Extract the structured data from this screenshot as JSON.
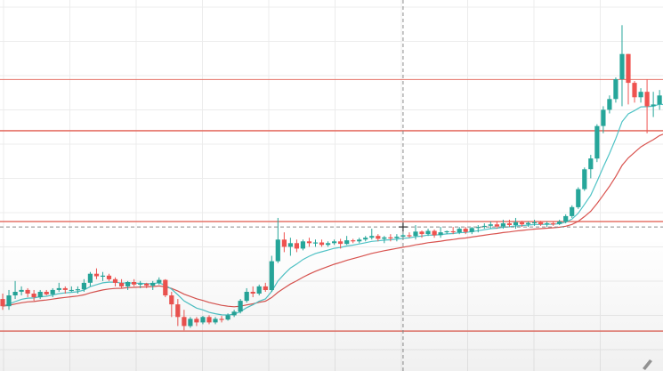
{
  "chart_data": {
    "type": "candlestick",
    "title": "",
    "xlabel": "",
    "ylabel": "",
    "ylim": [
      0,
      100
    ],
    "grid": true,
    "colors": {
      "up": "#26a69a",
      "down": "#ef5350",
      "fast_ma": "#4fc3c6",
      "slow_ma": "#d9534f",
      "horizontal_levels": "#e57368",
      "grid": "#ececec",
      "crosshair": "#8a8a8a"
    },
    "horizontal_levels": [
      79.4,
      65.2,
      40.0,
      9.6
    ],
    "crosshair": {
      "x_index": 64,
      "y_value": 38.5
    },
    "candles": [
      {
        "o": 18.5,
        "h": 20.0,
        "l": 15.5,
        "c": 16.5
      },
      {
        "o": 16.5,
        "h": 21.0,
        "l": 15.5,
        "c": 19.5
      },
      {
        "o": 19.5,
        "h": 23.5,
        "l": 18.5,
        "c": 20.5
      },
      {
        "o": 20.5,
        "h": 22.0,
        "l": 19.5,
        "c": 21.0
      },
      {
        "o": 21.0,
        "h": 21.5,
        "l": 19.0,
        "c": 20.0
      },
      {
        "o": 20.0,
        "h": 21.0,
        "l": 18.0,
        "c": 19.0
      },
      {
        "o": 19.0,
        "h": 21.0,
        "l": 18.5,
        "c": 20.5
      },
      {
        "o": 20.5,
        "h": 21.0,
        "l": 19.5,
        "c": 19.8
      },
      {
        "o": 19.8,
        "h": 21.5,
        "l": 19.0,
        "c": 21.0
      },
      {
        "o": 21.0,
        "h": 23.0,
        "l": 20.5,
        "c": 21.5
      },
      {
        "o": 21.5,
        "h": 22.0,
        "l": 20.0,
        "c": 21.0
      },
      {
        "o": 21.0,
        "h": 22.0,
        "l": 20.5,
        "c": 21.0
      },
      {
        "o": 21.0,
        "h": 22.0,
        "l": 20.0,
        "c": 21.2
      },
      {
        "o": 21.2,
        "h": 24.0,
        "l": 20.5,
        "c": 23.0
      },
      {
        "o": 23.0,
        "h": 26.0,
        "l": 22.0,
        "c": 25.5
      },
      {
        "o": 25.5,
        "h": 27.0,
        "l": 24.0,
        "c": 24.8
      },
      {
        "o": 24.8,
        "h": 26.0,
        "l": 23.5,
        "c": 25.0
      },
      {
        "o": 25.0,
        "h": 25.5,
        "l": 23.5,
        "c": 24.0
      },
      {
        "o": 24.0,
        "h": 24.5,
        "l": 22.0,
        "c": 23.0
      },
      {
        "o": 23.0,
        "h": 24.0,
        "l": 21.5,
        "c": 22.0
      },
      {
        "o": 22.0,
        "h": 23.5,
        "l": 21.0,
        "c": 23.2
      },
      {
        "o": 23.2,
        "h": 24.0,
        "l": 22.0,
        "c": 22.5
      },
      {
        "o": 22.5,
        "h": 23.5,
        "l": 21.5,
        "c": 22.8
      },
      {
        "o": 22.8,
        "h": 23.0,
        "l": 21.5,
        "c": 22.2
      },
      {
        "o": 22.2,
        "h": 23.5,
        "l": 21.0,
        "c": 23.0
      },
      {
        "o": 23.0,
        "h": 24.5,
        "l": 22.5,
        "c": 23.8
      },
      {
        "o": 23.8,
        "h": 24.0,
        "l": 19.0,
        "c": 19.5
      },
      {
        "o": 19.5,
        "h": 20.5,
        "l": 13.5,
        "c": 17.0
      },
      {
        "o": 17.0,
        "h": 18.5,
        "l": 11.0,
        "c": 13.5
      },
      {
        "o": 13.5,
        "h": 15.5,
        "l": 9.8,
        "c": 11.0
      },
      {
        "o": 11.0,
        "h": 13.5,
        "l": 10.5,
        "c": 13.0
      },
      {
        "o": 13.0,
        "h": 13.5,
        "l": 11.0,
        "c": 12.0
      },
      {
        "o": 12.0,
        "h": 13.8,
        "l": 11.5,
        "c": 13.5
      },
      {
        "o": 13.5,
        "h": 14.0,
        "l": 11.5,
        "c": 12.0
      },
      {
        "o": 12.0,
        "h": 13.5,
        "l": 11.5,
        "c": 13.0
      },
      {
        "o": 13.0,
        "h": 13.8,
        "l": 12.0,
        "c": 12.8
      },
      {
        "o": 12.8,
        "h": 14.5,
        "l": 12.5,
        "c": 14.0
      },
      {
        "o": 14.0,
        "h": 15.5,
        "l": 13.5,
        "c": 15.0
      },
      {
        "o": 15.0,
        "h": 18.5,
        "l": 14.5,
        "c": 18.0
      },
      {
        "o": 18.0,
        "h": 21.5,
        "l": 17.5,
        "c": 20.5
      },
      {
        "o": 20.5,
        "h": 22.0,
        "l": 19.0,
        "c": 20.0
      },
      {
        "o": 20.0,
        "h": 22.5,
        "l": 19.5,
        "c": 22.0
      },
      {
        "o": 22.0,
        "h": 23.0,
        "l": 20.5,
        "c": 21.0
      },
      {
        "o": 21.0,
        "h": 30.5,
        "l": 20.5,
        "c": 29.0
      },
      {
        "o": 29.0,
        "h": 41.0,
        "l": 28.5,
        "c": 35.0
      },
      {
        "o": 35.0,
        "h": 37.0,
        "l": 31.5,
        "c": 33.0
      },
      {
        "o": 33.0,
        "h": 35.5,
        "l": 30.5,
        "c": 34.0
      },
      {
        "o": 34.0,
        "h": 35.0,
        "l": 31.5,
        "c": 32.5
      },
      {
        "o": 32.5,
        "h": 35.0,
        "l": 32.0,
        "c": 34.5
      },
      {
        "o": 34.5,
        "h": 35.5,
        "l": 33.0,
        "c": 34.0
      },
      {
        "o": 34.0,
        "h": 35.0,
        "l": 33.0,
        "c": 34.2
      },
      {
        "o": 34.2,
        "h": 35.0,
        "l": 33.0,
        "c": 33.5
      },
      {
        "o": 33.5,
        "h": 34.5,
        "l": 33.0,
        "c": 34.0
      },
      {
        "o": 34.0,
        "h": 35.0,
        "l": 33.5,
        "c": 34.5
      },
      {
        "o": 34.5,
        "h": 35.2,
        "l": 32.5,
        "c": 33.8
      },
      {
        "o": 33.8,
        "h": 36.0,
        "l": 33.5,
        "c": 34.8
      },
      {
        "o": 34.8,
        "h": 35.2,
        "l": 34.0,
        "c": 34.5
      },
      {
        "o": 34.5,
        "h": 35.5,
        "l": 34.0,
        "c": 35.0
      },
      {
        "o": 35.0,
        "h": 36.0,
        "l": 34.5,
        "c": 35.5
      },
      {
        "o": 35.5,
        "h": 38.0,
        "l": 35.0,
        "c": 36.0
      },
      {
        "o": 36.0,
        "h": 36.5,
        "l": 34.5,
        "c": 35.2
      },
      {
        "o": 35.2,
        "h": 36.0,
        "l": 34.0,
        "c": 35.6
      },
      {
        "o": 35.6,
        "h": 36.5,
        "l": 34.5,
        "c": 35.4
      },
      {
        "o": 35.4,
        "h": 36.5,
        "l": 34.5,
        "c": 35.8
      },
      {
        "o": 35.8,
        "h": 37.5,
        "l": 35.0,
        "c": 36.2
      },
      {
        "o": 36.2,
        "h": 37.0,
        "l": 35.5,
        "c": 36.0
      },
      {
        "o": 36.0,
        "h": 39.0,
        "l": 35.0,
        "c": 37.2
      },
      {
        "o": 37.2,
        "h": 37.5,
        "l": 35.5,
        "c": 36.5
      },
      {
        "o": 36.5,
        "h": 38.0,
        "l": 36.0,
        "c": 37.4
      },
      {
        "o": 37.4,
        "h": 37.8,
        "l": 35.5,
        "c": 36.2
      },
      {
        "o": 36.2,
        "h": 38.5,
        "l": 35.5,
        "c": 37.0
      },
      {
        "o": 37.0,
        "h": 37.5,
        "l": 36.5,
        "c": 37.3
      },
      {
        "o": 37.3,
        "h": 38.5,
        "l": 36.5,
        "c": 37.0
      },
      {
        "o": 37.0,
        "h": 38.5,
        "l": 36.5,
        "c": 38.0
      },
      {
        "o": 38.0,
        "h": 38.5,
        "l": 36.5,
        "c": 37.1
      },
      {
        "o": 37.1,
        "h": 38.5,
        "l": 36.5,
        "c": 38.2
      },
      {
        "o": 38.2,
        "h": 39.0,
        "l": 37.0,
        "c": 38.5
      },
      {
        "o": 38.5,
        "h": 39.5,
        "l": 38.0,
        "c": 38.8
      },
      {
        "o": 38.8,
        "h": 40.0,
        "l": 38.0,
        "c": 39.2
      },
      {
        "o": 39.2,
        "h": 40.0,
        "l": 38.0,
        "c": 38.6
      },
      {
        "o": 38.6,
        "h": 40.5,
        "l": 38.0,
        "c": 39.5
      },
      {
        "o": 39.5,
        "h": 40.5,
        "l": 38.5,
        "c": 39.0
      },
      {
        "o": 39.0,
        "h": 41.0,
        "l": 38.0,
        "c": 39.8
      },
      {
        "o": 39.8,
        "h": 40.2,
        "l": 38.5,
        "c": 39.2
      },
      {
        "o": 39.2,
        "h": 40.0,
        "l": 38.5,
        "c": 39.6
      },
      {
        "o": 39.6,
        "h": 40.5,
        "l": 38.8,
        "c": 39.8
      },
      {
        "o": 39.8,
        "h": 40.2,
        "l": 38.8,
        "c": 39.2
      },
      {
        "o": 39.2,
        "h": 40.0,
        "l": 38.5,
        "c": 39.5
      },
      {
        "o": 39.5,
        "h": 40.0,
        "l": 38.8,
        "c": 39.3
      },
      {
        "o": 39.3,
        "h": 40.5,
        "l": 39.0,
        "c": 40.0
      },
      {
        "o": 40.0,
        "h": 42.0,
        "l": 39.5,
        "c": 41.5
      },
      {
        "o": 41.5,
        "h": 44.5,
        "l": 41.0,
        "c": 44.0
      },
      {
        "o": 44.0,
        "h": 49.5,
        "l": 43.5,
        "c": 49.0
      },
      {
        "o": 49.0,
        "h": 55.0,
        "l": 48.5,
        "c": 54.5
      },
      {
        "o": 54.5,
        "h": 58.5,
        "l": 52.0,
        "c": 57.5
      },
      {
        "o": 57.5,
        "h": 67.0,
        "l": 56.5,
        "c": 66.5
      },
      {
        "o": 66.5,
        "h": 72.0,
        "l": 64.5,
        "c": 71.0
      },
      {
        "o": 71.0,
        "h": 75.0,
        "l": 70.0,
        "c": 74.0
      },
      {
        "o": 74.0,
        "h": 80.0,
        "l": 73.0,
        "c": 79.5
      },
      {
        "o": 79.5,
        "h": 94.5,
        "l": 72.0,
        "c": 86.5
      },
      {
        "o": 86.5,
        "h": 86.5,
        "l": 72.5,
        "c": 78.5
      },
      {
        "o": 78.5,
        "h": 79.0,
        "l": 73.0,
        "c": 74.5
      },
      {
        "o": 74.5,
        "h": 77.0,
        "l": 73.0,
        "c": 76.0
      },
      {
        "o": 76.0,
        "h": 79.5,
        "l": 64.5,
        "c": 72.0
      },
      {
        "o": 72.0,
        "h": 76.0,
        "l": 69.0,
        "c": 72.5
      },
      {
        "o": 72.5,
        "h": 76.5,
        "l": 71.0,
        "c": 75.0
      },
      {
        "o": 75.0,
        "h": 79.0,
        "l": 70.5,
        "c": 71.5
      },
      {
        "o": 71.5,
        "h": 74.0,
        "l": 70.0,
        "c": 72.0
      },
      {
        "o": 72.0,
        "h": 75.5,
        "l": 71.5,
        "c": 73.5
      },
      {
        "o": 73.5,
        "h": 81.5,
        "l": 72.5,
        "c": 76.5
      },
      {
        "o": 76.5,
        "h": 80.5,
        "l": 71.0,
        "c": 72.5
      },
      {
        "o": 72.5,
        "h": 76.5,
        "l": 71.5,
        "c": 73.5
      }
    ]
  },
  "toolbar": {
    "corner_icon": "pencil-icon"
  }
}
